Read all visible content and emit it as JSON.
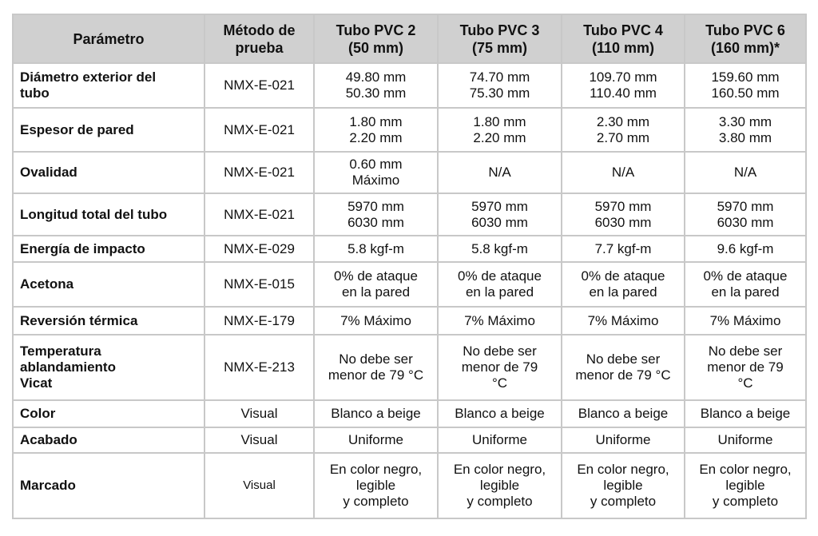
{
  "table": {
    "headers": [
      "Parámetro",
      "Método de\nprueba",
      "Tubo PVC 2\n(50 mm)",
      "Tubo PVC 3\n(75 mm)",
      "Tubo PVC 4\n(110 mm)",
      "Tubo PVC 6\n(160 mm)*"
    ],
    "header_bg": "#d0d0d0",
    "rows": [
      [
        "Diámetro exterior del\ntubo",
        "NMX-E-021",
        "49.80 mm\n50.30 mm",
        "74.70 mm\n75.30 mm",
        "109.70 mm\n110.40 mm",
        "159.60 mm\n160.50 mm"
      ],
      [
        "Espesor de pared",
        "NMX-E-021",
        "1.80 mm\n2.20 mm",
        "1.80 mm\n2.20 mm",
        "2.30 mm\n2.70 mm",
        "3.30 mm\n3.80 mm"
      ],
      [
        "Ovalidad",
        "NMX-E-021",
        "0.60 mm\nMáximo",
        "N/A",
        "N/A",
        "N/A"
      ],
      [
        "Longitud total del tubo",
        "NMX-E-021",
        "5970 mm\n6030 mm",
        "5970 mm\n6030 mm",
        "5970 mm\n6030 mm",
        "5970 mm\n6030 mm"
      ],
      [
        "Energía de impacto",
        "NMX-E-029",
        "5.8 kgf-m",
        "5.8 kgf-m",
        "7.7 kgf-m",
        "9.6 kgf-m"
      ],
      [
        "Acetona",
        "NMX-E-015",
        "0% de ataque\nen la pared",
        "0% de ataque\nen la pared",
        "0% de ataque\nen la pared",
        "0% de ataque\nen la pared"
      ],
      [
        "Reversión térmica",
        "NMX-E-179",
        "7% Máximo",
        "7% Máximo",
        "7% Máximo",
        "7% Máximo"
      ],
      [
        "Temperatura\nablandamiento\nVicat",
        "NMX-E-213",
        "No debe ser\nmenor de 79 °C",
        "No debe ser\nmenor de 79\n°C",
        "No debe ser\nmenor de 79 °C",
        "No debe ser\nmenor de 79\n°C"
      ],
      [
        "Color",
        "Visual",
        "Blanco a beige",
        "Blanco a beige",
        "Blanco a beige",
        "Blanco a beige"
      ],
      [
        "Acabado",
        "Visual",
        "Uniforme",
        "Uniforme",
        "Uniforme",
        "Uniforme"
      ],
      [
        "Marcado",
        "Visual",
        "En color negro,\nlegible\ny completo",
        "En color negro,\nlegible\ny completo",
        "En color negro,\nlegible\ny completo",
        "En color negro,\nlegible\ny completo"
      ]
    ]
  }
}
